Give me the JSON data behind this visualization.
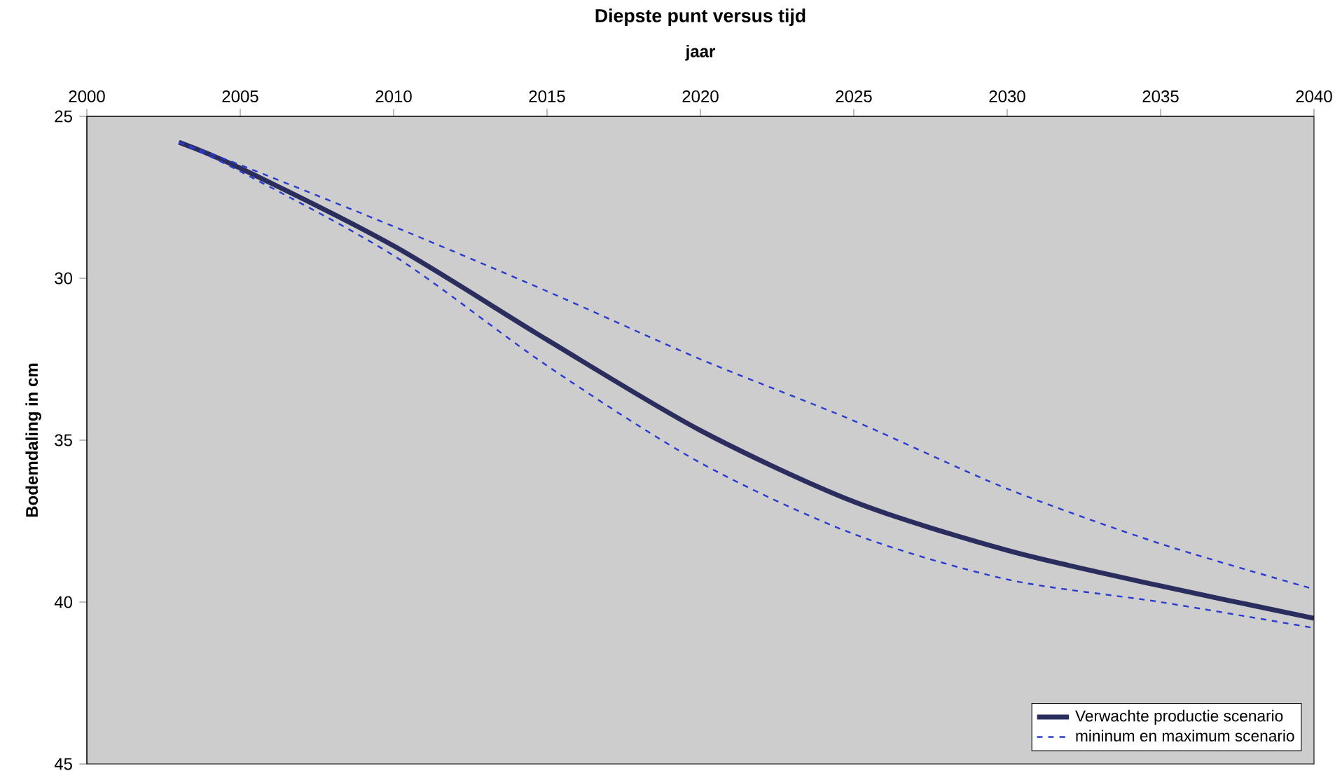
{
  "chart_data": {
    "type": "line",
    "title": "Diepste punt versus tijd",
    "xlabel": "jaar",
    "ylabel": "Bodemdaling in cm",
    "xlim": [
      2000,
      2040
    ],
    "xticks": [
      2000,
      2005,
      2010,
      2015,
      2020,
      2025,
      2030,
      2035,
      2040
    ],
    "ylim": [
      45,
      25
    ],
    "yticks": [
      25,
      30,
      35,
      40,
      45
    ],
    "grid": false,
    "legend": "bottom right",
    "marker": "none",
    "series": [
      {
        "name": "Verwachte productie scenario",
        "color": "#2b2d5e",
        "line_style": "solid",
        "x": [
          2003,
          2005,
          2010,
          2015,
          2020,
          2025,
          2030,
          2035,
          2040
        ],
        "values": [
          25.8,
          26.6,
          29.0,
          31.9,
          34.7,
          36.9,
          38.4,
          39.5,
          40.5
        ]
      },
      {
        "name": "mininum en maximum scenario",
        "color": "#2a3bd0",
        "line_style": "dashed",
        "x": [
          2003,
          2005,
          2010,
          2015,
          2020,
          2025,
          2030,
          2035,
          2040
        ],
        "values": [
          25.8,
          26.5,
          28.4,
          30.4,
          32.5,
          34.4,
          36.5,
          38.2,
          39.6
        ]
      },
      {
        "color": "#2a3bd0",
        "line_style": "dashed",
        "x": [
          2003,
          2005,
          2010,
          2015,
          2020,
          2025,
          2030,
          2035,
          2040
        ],
        "values": [
          25.8,
          26.7,
          29.3,
          32.7,
          35.7,
          37.9,
          39.3,
          40.0,
          40.8
        ]
      }
    ]
  }
}
